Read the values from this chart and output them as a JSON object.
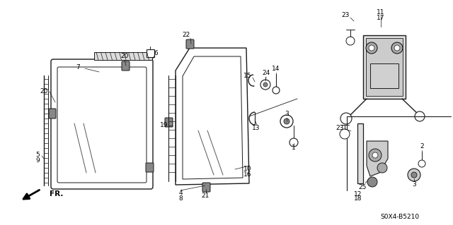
{
  "title": "S0X4-B5210",
  "bg_color": "#ffffff",
  "lc": "#1a1a1a",
  "figsize": [
    6.4,
    3.19
  ],
  "dpi": 100
}
